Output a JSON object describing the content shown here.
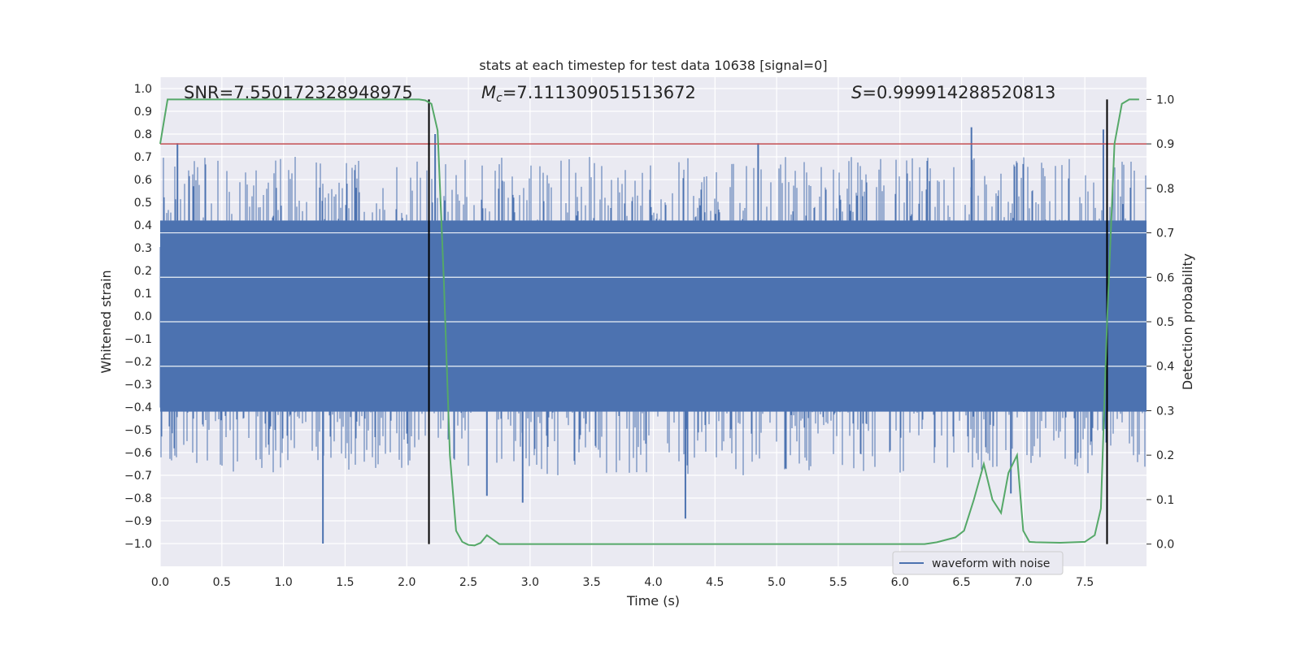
{
  "chart_data": {
    "type": "line",
    "title": "stats at each timestep for test data 10638 [signal=0]",
    "xlabel": "Time (s)",
    "ylabel": "Whitened strain",
    "ylabel_right": "Detection probability",
    "xlim": [
      0,
      8
    ],
    "ylim": [
      -1.1,
      1.05
    ],
    "ylim_right": [
      -0.05,
      1.05
    ],
    "x_ticks": [
      0.0,
      0.5,
      1.0,
      1.5,
      2.0,
      2.5,
      3.0,
      3.5,
      4.0,
      4.5,
      5.0,
      5.5,
      6.0,
      6.5,
      7.0,
      7.5
    ],
    "x_tick_labels": [
      "0.0",
      "0.5",
      "1.0",
      "1.5",
      "2.0",
      "2.5",
      "3.0",
      "3.5",
      "4.0",
      "4.5",
      "5.0",
      "5.5",
      "6.0",
      "6.5",
      "7.0",
      "7.5"
    ],
    "y_ticks": [
      -1.0,
      -0.9,
      -0.8,
      -0.7,
      -0.6,
      -0.5,
      -0.4,
      -0.3,
      -0.2,
      -0.1,
      0.0,
      0.1,
      0.2,
      0.3,
      0.4,
      0.5,
      0.6,
      0.7,
      0.8,
      0.9,
      1.0
    ],
    "y_tick_labels": [
      "−1.0",
      "−0.9",
      "−0.8",
      "−0.7",
      "−0.6",
      "−0.5",
      "−0.4",
      "−0.3",
      "−0.2",
      "−0.1",
      "0.0",
      "0.1",
      "0.2",
      "0.3",
      "0.4",
      "0.5",
      "0.6",
      "0.7",
      "0.8",
      "0.9",
      "1.0"
    ],
    "y_right_ticks": [
      0.0,
      0.1,
      0.2,
      0.3,
      0.4,
      0.5,
      0.6,
      0.7,
      0.8,
      0.9,
      1.0
    ],
    "y_right_tick_labels": [
      "0.0",
      "0.1",
      "0.2",
      "0.3",
      "0.4",
      "0.5",
      "0.6",
      "0.7",
      "0.8",
      "0.9",
      "1.0"
    ],
    "grid": true,
    "legend": {
      "placement": "lower-right",
      "entries": [
        "waveform with noise"
      ]
    },
    "annotations": {
      "snr": "SNR=7.550172328948975",
      "mc_symbol": "M",
      "mc_subscript": "c",
      "mc_value": "=7.111309051513672",
      "s_symbol": "S",
      "s_value": "=0.999914288520813"
    },
    "series": [
      {
        "name": "waveform with noise",
        "axis": "left",
        "color": "#4c72b0",
        "style": "dense noisy strain",
        "max_spikes": [
          {
            "x": 0.14,
            "y": 0.76
          },
          {
            "x": 2.23,
            "y": 0.8
          },
          {
            "x": 4.85,
            "y": 0.76
          },
          {
            "x": 6.58,
            "y": 0.83
          },
          {
            "x": 7.65,
            "y": 0.82
          }
        ],
        "min_spikes": [
          {
            "x": 1.32,
            "y": -1.0
          },
          {
            "x": 2.65,
            "y": -0.79
          },
          {
            "x": 2.94,
            "y": -0.82
          },
          {
            "x": 4.26,
            "y": -0.89
          },
          {
            "x": 6.9,
            "y": -0.78
          }
        ]
      },
      {
        "name": "",
        "axis": "right",
        "color": "#55a868",
        "x": [
          0.0,
          0.06,
          0.2,
          0.5,
          1.0,
          1.5,
          2.0,
          2.1,
          2.15,
          2.2,
          2.25,
          2.3,
          2.35,
          2.4,
          2.45,
          2.5,
          2.55,
          2.6,
          2.65,
          2.7,
          2.75,
          2.8,
          3.0,
          3.5,
          4.0,
          4.5,
          5.0,
          5.5,
          6.0,
          6.2,
          6.3,
          6.45,
          6.52,
          6.6,
          6.68,
          6.75,
          6.82,
          6.88,
          6.95,
          7.0,
          7.05,
          7.1,
          7.3,
          7.5,
          7.58,
          7.63,
          7.68,
          7.74,
          7.8,
          7.86,
          7.9,
          7.94
        ],
        "y": [
          0.9,
          1.0,
          1.0,
          1.0,
          1.0,
          1.0,
          1.0,
          1.0,
          0.998,
          0.99,
          0.93,
          0.6,
          0.2,
          0.03,
          0.005,
          -0.002,
          -0.003,
          0.003,
          0.02,
          0.01,
          0.0,
          0.0,
          0.0,
          0.0,
          0.0,
          0.0,
          0.0,
          0.0,
          0.0,
          0.0,
          0.004,
          0.015,
          0.03,
          0.1,
          0.18,
          0.1,
          0.07,
          0.16,
          0.2,
          0.03,
          0.005,
          0.004,
          0.003,
          0.005,
          0.02,
          0.08,
          0.5,
          0.9,
          0.99,
          1.0,
          1.0,
          1.0
        ]
      }
    ],
    "hlines": [
      {
        "axis": "right",
        "y": 0.9,
        "color": "#c44e52"
      }
    ],
    "vlines": [
      {
        "x": 2.18,
        "ymin": 0.0,
        "ymax": 1.0,
        "color": "#000000"
      },
      {
        "x": 7.68,
        "ymin": 0.0,
        "ymax": 1.0,
        "color": "#000000"
      }
    ],
    "colors": {
      "background": "#eaeaf2",
      "grid": "#ffffff",
      "strain": "#4c72b0",
      "probability": "#55a868",
      "threshold": "#c44e52",
      "markers": "#000000"
    }
  }
}
